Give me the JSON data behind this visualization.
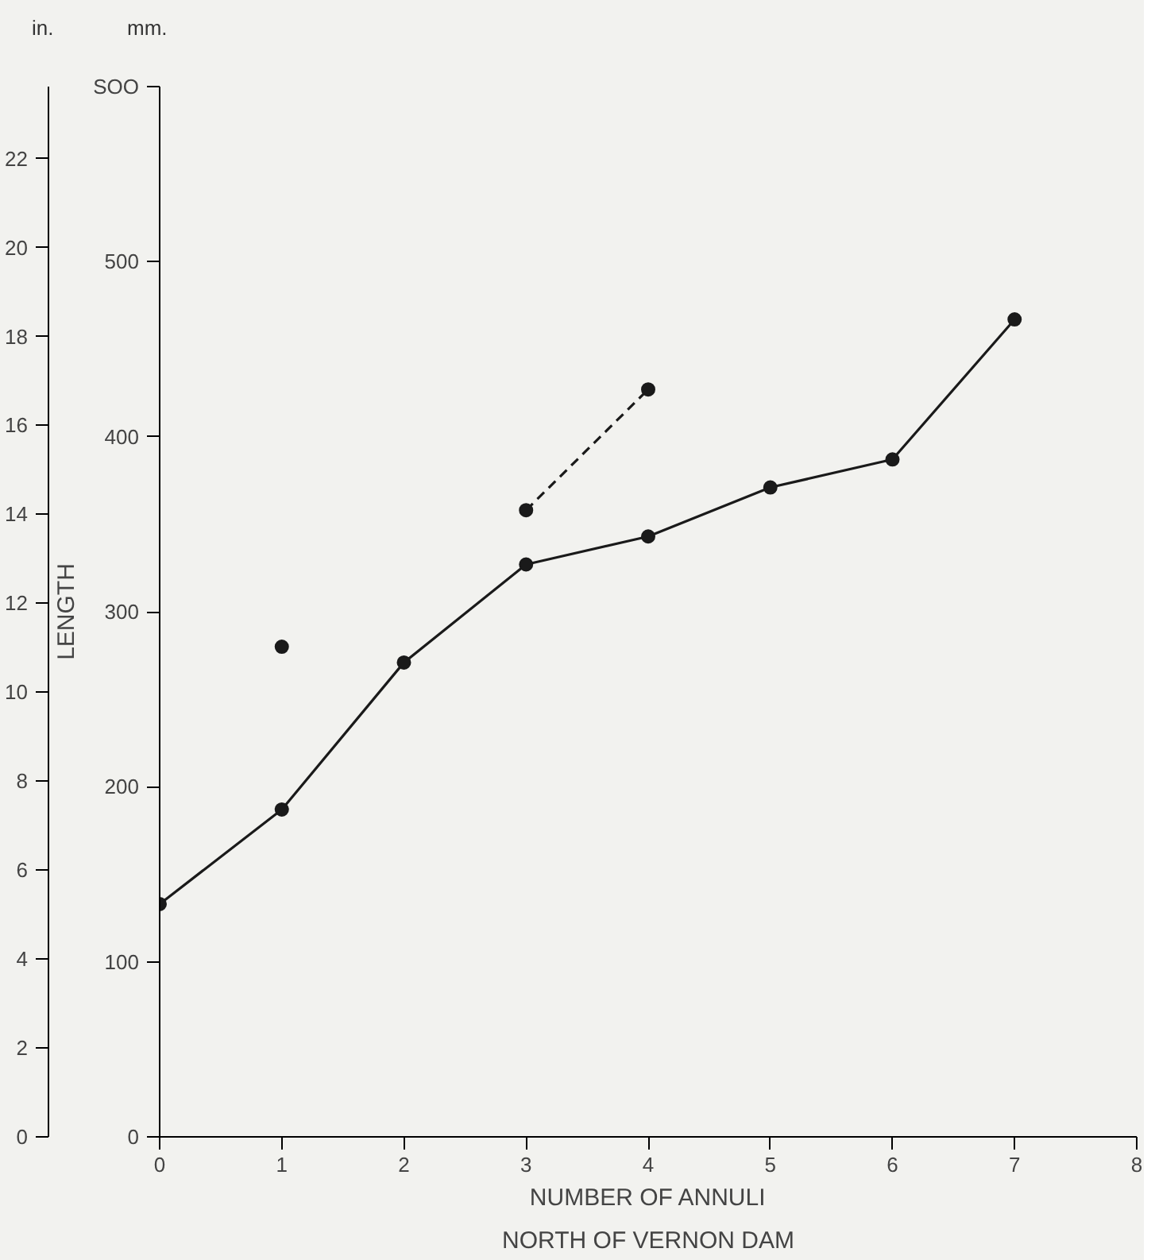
{
  "chart_data": {
    "type": "line",
    "ylabel": "LENGTH",
    "xlabel": "NUMBER OF ANNULI",
    "subtitle": "NORTH OF VERNON DAM",
    "annotations": [
      "mm.",
      "in."
    ],
    "xlim": [
      0,
      8
    ],
    "xticks": [
      0,
      1,
      2,
      3,
      4,
      5,
      6,
      7,
      8
    ],
    "ylim": [
      0,
      600
    ],
    "yticks": [
      0,
      100,
      200,
      300,
      400,
      500,
      {
        "value": 600,
        "label": "SOO"
      }
    ],
    "y2lim": [
      0,
      23.62
    ],
    "y2ticks": [
      0,
      2,
      4,
      6,
      8,
      10,
      12,
      14,
      16,
      18,
      20,
      22
    ],
    "grid": false,
    "series": [
      {
        "color": "#1a1a1a",
        "x": [
          0,
          1,
          2,
          3,
          4,
          5,
          6,
          7
        ],
        "values": [
          133,
          187,
          271,
          327,
          343,
          371,
          387,
          467
        ],
        "marker": "circle",
        "line_style": "solid"
      },
      {
        "color": "#1a1a1a",
        "x": [
          3,
          4
        ],
        "values": [
          358,
          427
        ],
        "marker": "circle",
        "line_style": "dashed"
      },
      {
        "type": "scatter",
        "color": "#1a1a1a",
        "x": [
          1
        ],
        "values": [
          280
        ],
        "marker": "circle"
      }
    ]
  }
}
